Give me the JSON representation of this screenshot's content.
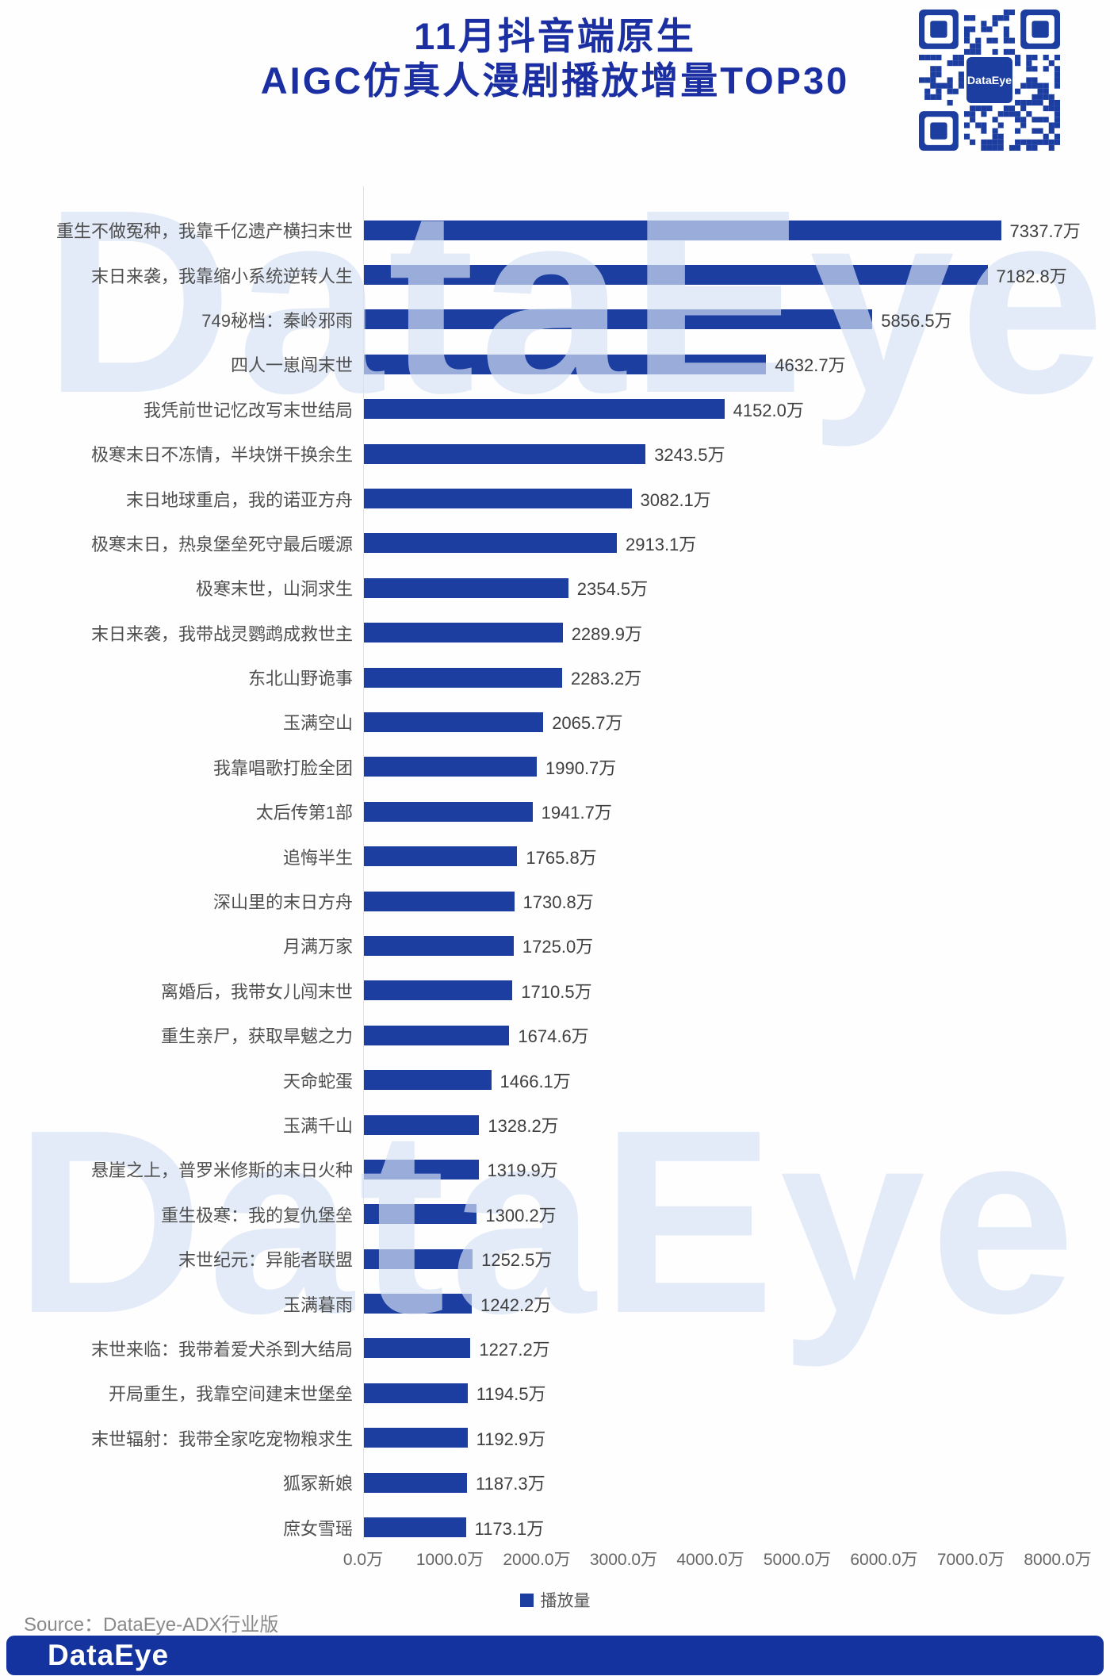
{
  "header": {
    "title_line1": "11月抖音端原生",
    "title_line2": "AIGC仿真人漫剧播放增量TOP30",
    "qr_center_label": "DataEye"
  },
  "chart_data": {
    "type": "bar",
    "orientation": "horizontal",
    "title": "11月抖音端原生AIGC仿真人漫剧播放增量TOP30",
    "series_name": "播放量",
    "unit": "万",
    "xlim": [
      0,
      8000
    ],
    "x_ticks": [
      "0.0万",
      "1000.0万",
      "2000.0万",
      "3000.0万",
      "4000.0万",
      "5000.0万",
      "6000.0万",
      "7000.0万",
      "8000.0万"
    ],
    "legend_position": "bottom",
    "grid": false,
    "bar_color": "#1d3ea1",
    "categories": [
      "重生不做冤种，我靠千亿遗产横扫末世",
      "末日来袭，我靠缩小系统逆转人生",
      "749秘档：秦岭邪雨",
      "四人一崽闯末世",
      "我凭前世记忆改写末世结局",
      "极寒末日不冻情，半块饼干换余生",
      "末日地球重启，我的诺亚方舟",
      "极寒末日，热泉堡垒死守最后暖源",
      "极寒末世，山洞求生",
      "末日来袭，我带战灵鹦鹉成救世主",
      "东北山野诡事",
      "玉满空山",
      "我靠唱歌打脸全团",
      "太后传第1部",
      "追悔半生",
      "深山里的末日方舟",
      "月满万家",
      "离婚后，我带女儿闯末世",
      "重生亲尸，获取旱魃之力",
      "天命蛇蛋",
      "玉满千山",
      "悬崖之上，普罗米修斯的末日火种",
      "重生极寒：我的复仇堡垒",
      "末世纪元：异能者联盟",
      "玉满暮雨",
      "末世来临：我带着爱犬杀到大结局",
      "开局重生，我靠空间建末世堡垒",
      "末世辐射：我带全家吃宠物粮求生",
      "狐冢新娘",
      "庶女雪瑶"
    ],
    "values": [
      7337.7,
      7182.8,
      5856.5,
      4632.7,
      4152.0,
      3243.5,
      3082.1,
      2913.1,
      2354.5,
      2289.9,
      2283.2,
      2065.7,
      1990.7,
      1941.7,
      1765.8,
      1730.8,
      1725.0,
      1710.5,
      1674.6,
      1466.1,
      1328.2,
      1319.9,
      1300.2,
      1252.5,
      1242.2,
      1227.2,
      1194.5,
      1192.9,
      1187.3,
      1173.1
    ],
    "value_labels": [
      "7337.7万",
      "7182.8万",
      "5856.5万",
      "4632.7万",
      "4152.0万",
      "3243.5万",
      "3082.1万",
      "2913.1万",
      "2354.5万",
      "2289.9万",
      "2283.2万",
      "2065.7万",
      "1990.7万",
      "1941.7万",
      "1765.8万",
      "1730.8万",
      "1725.0万",
      "1710.5万",
      "1674.6万",
      "1466.1万",
      "1328.2万",
      "1319.9万",
      "1300.2万",
      "1252.5万",
      "1242.2万",
      "1227.2万",
      "1194.5万",
      "1192.9万",
      "1187.3万",
      "1173.1万"
    ]
  },
  "watermark": {
    "text": "DataEye"
  },
  "footer": {
    "source": "Source：DataEye-ADX行业版",
    "logo_text": "DataEye"
  },
  "colors": {
    "title_blue": "#1b2fa3",
    "bar_blue": "#1d3ea1",
    "footer_blue": "#14339e",
    "label_gray": "#4f4f4f",
    "value_gray": "#3f3f3f",
    "tick_gray": "#666666",
    "source_gray": "#8a8a8a",
    "watermark_blue": "rgba(214,226,245,0.68)"
  }
}
